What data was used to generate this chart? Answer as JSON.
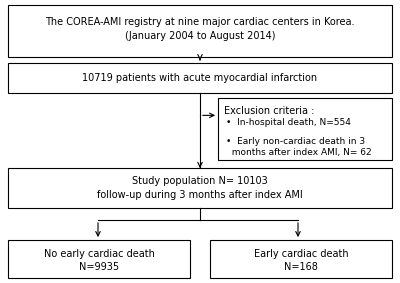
{
  "box1_text": "The COREA-AMI registry at nine major cardiac centers in Korea.\n(January 2004 to August 2014)",
  "box2_text": "10719 patients with acute myocardial infarction",
  "box3_title": "Exclusion criteria :",
  "box3_bullets": [
    "In-hospital death, N=554",
    "Early non-cardiac death in 3\n  months after index AMI, N= 62"
  ],
  "box4_text": "Study population N= 10103\nfollow-up during 3 months after index AMI",
  "box5_line1": "No early cardiac death",
  "box5_line2": "N=9935",
  "box6_line1": "Early cardiac death",
  "box6_line2": "N=168",
  "bg_color": "#ffffff",
  "box_edge_color": "#000000",
  "text_color": "#000000",
  "font_size": 7.0
}
